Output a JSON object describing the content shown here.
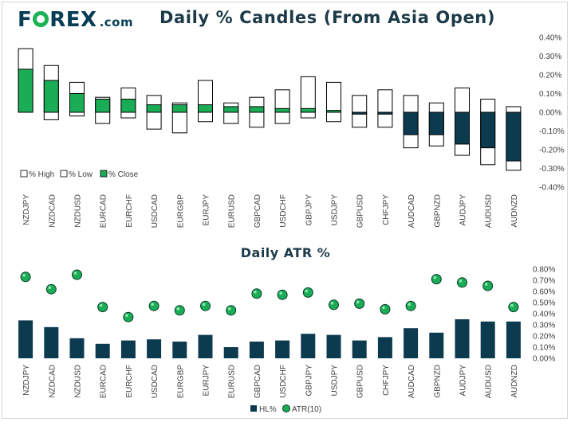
{
  "brand": {
    "name_part1": "F",
    "name_part2": "REX",
    "suffix": ".com",
    "ring_color": "#1bb356"
  },
  "titles": {
    "candles": "Daily % Candles (From Asia Open)",
    "atr": "Daily ATR %"
  },
  "colors": {
    "positive": "#1aad55",
    "negative": "#0c3a4f",
    "range_fill": "#ffffff",
    "outline": "#000000",
    "hl_bar": "#0c3a4f",
    "atr_dot": "#1aad55"
  },
  "chart_data": [
    {
      "type": "bar",
      "title": "Daily % Candles (From Asia Open)",
      "categories": [
        "NZDJPY",
        "NZDCAD",
        "NZDUSD",
        "EURCAD",
        "EURCHF",
        "USDCAD",
        "EURGBP",
        "EURJPY",
        "EURUSD",
        "GBPCAD",
        "USDCHF",
        "GBPJPY",
        "USDJPY",
        "GBPUSD",
        "CHFJPY",
        "AUDCAD",
        "GBPNZD",
        "AUDJPY",
        "AUDUSD",
        "AUDNZD"
      ],
      "series": [
        {
          "name": "% High",
          "values": [
            0.34,
            0.25,
            0.16,
            0.08,
            0.13,
            0.09,
            0.05,
            0.17,
            0.05,
            0.08,
            0.12,
            0.19,
            0.16,
            0.09,
            0.12,
            0.09,
            0.05,
            0.13,
            0.07,
            0.03
          ]
        },
        {
          "name": "% Low",
          "values": [
            0.0,
            -0.04,
            -0.02,
            -0.06,
            -0.03,
            -0.09,
            -0.11,
            -0.05,
            -0.06,
            -0.08,
            -0.06,
            -0.03,
            -0.05,
            -0.08,
            -0.08,
            -0.19,
            -0.18,
            -0.23,
            -0.28,
            -0.31
          ]
        },
        {
          "name": "% Close",
          "values": [
            0.23,
            0.17,
            0.1,
            0.07,
            0.07,
            0.04,
            0.04,
            0.04,
            0.03,
            0.03,
            0.02,
            0.02,
            0.01,
            -0.01,
            -0.01,
            -0.12,
            -0.12,
            -0.17,
            -0.19,
            -0.26
          ]
        }
      ],
      "ylim": [
        -0.4,
        0.4
      ],
      "yticks": [
        "0.40%",
        "0.30%",
        "0.20%",
        "0.10%",
        "0.00%",
        "-0.10%",
        "-0.20%",
        "-0.30%",
        "-0.40%"
      ],
      "ytick_values": [
        0.4,
        0.3,
        0.2,
        0.1,
        0.0,
        -0.1,
        -0.2,
        -0.3,
        -0.4
      ],
      "legend": [
        "% High",
        "% Low",
        "% Close"
      ],
      "legend_position": "bottom-left",
      "y_axis_side": "right"
    },
    {
      "type": "bar",
      "title": "Daily ATR %",
      "categories": [
        "NZDJPY",
        "NZDCAD",
        "NZDUSD",
        "EURCAD",
        "EURCHF",
        "USDCAD",
        "EURGBP",
        "EURJPY",
        "EURUSD",
        "GBPCAD",
        "USDCHF",
        "GBPJPY",
        "USDJPY",
        "GBPUSD",
        "CHFJPY",
        "AUDCAD",
        "GBPNZD",
        "AUDJPY",
        "AUDUSD",
        "AUDNZD"
      ],
      "series": [
        {
          "name": "HL%",
          "kind": "bar",
          "values": [
            0.34,
            0.28,
            0.18,
            0.13,
            0.16,
            0.17,
            0.15,
            0.21,
            0.1,
            0.15,
            0.16,
            0.22,
            0.21,
            0.16,
            0.19,
            0.27,
            0.23,
            0.35,
            0.33,
            0.33
          ]
        },
        {
          "name": "ATR(10)",
          "kind": "scatter",
          "values": [
            0.73,
            0.62,
            0.75,
            0.46,
            0.37,
            0.47,
            0.43,
            0.47,
            0.43,
            0.58,
            0.57,
            0.59,
            0.48,
            0.49,
            0.44,
            0.47,
            0.71,
            0.68,
            0.65,
            0.46
          ]
        }
      ],
      "ylim": [
        0.0,
        0.8
      ],
      "yticks": [
        "0.80%",
        "0.70%",
        "0.60%",
        "0.50%",
        "0.40%",
        "0.30%",
        "0.20%",
        "0.10%",
        "0.00%"
      ],
      "ytick_values": [
        0.8,
        0.7,
        0.6,
        0.5,
        0.4,
        0.3,
        0.2,
        0.1,
        0.0
      ],
      "legend": [
        "HL%",
        "ATR(10)"
      ],
      "legend_position": "bottom-center",
      "y_axis_side": "right"
    }
  ]
}
